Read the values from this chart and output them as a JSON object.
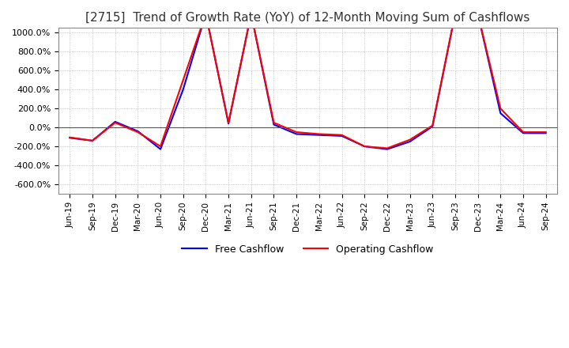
{
  "title": "[2715]  Trend of Growth Rate (YoY) of 12-Month Moving Sum of Cashflows",
  "title_fontsize": 11,
  "ylim": [
    -700,
    1050
  ],
  "yticks": [
    -600,
    -400,
    -200,
    0,
    200,
    400,
    600,
    800,
    1000
  ],
  "yticklabels": [
    "-600.0%",
    "-400.0%",
    "-200.0%",
    "0.0%",
    "200.0%",
    "400.0%",
    "600.0%",
    "800.0%",
    "1000.0%"
  ],
  "x_labels": [
    "Jun-19",
    "Sep-19",
    "Dec-19",
    "Mar-20",
    "Jun-20",
    "Sep-20",
    "Dec-20",
    "Mar-21",
    "Jun-21",
    "Sep-21",
    "Dec-21",
    "Mar-22",
    "Jun-22",
    "Sep-22",
    "Dec-22",
    "Mar-23",
    "Jun-23",
    "Sep-23",
    "Dec-23",
    "Mar-24",
    "Jun-24",
    "Sep-24"
  ],
  "operating_cashflow": [
    -105,
    -140,
    50,
    -50,
    -200,
    500,
    1200,
    50,
    1200,
    50,
    -50,
    -70,
    -80,
    -200,
    -220,
    -130,
    20,
    1200,
    1200,
    200,
    -50,
    -50
  ],
  "free_cashflow": [
    -110,
    -140,
    60,
    -40,
    -230,
    400,
    1200,
    40,
    1200,
    30,
    -70,
    -80,
    -90,
    -200,
    -230,
    -150,
    10,
    1200,
    1200,
    150,
    -60,
    -60
  ],
  "operating_color": "#FF0000",
  "free_color": "#0000FF",
  "legend_labels": [
    "Operating Cashflow",
    "Free Cashflow"
  ],
  "background_color": "#FFFFFF",
  "grid_color": "#AAAAAA",
  "line_width": 1.5
}
